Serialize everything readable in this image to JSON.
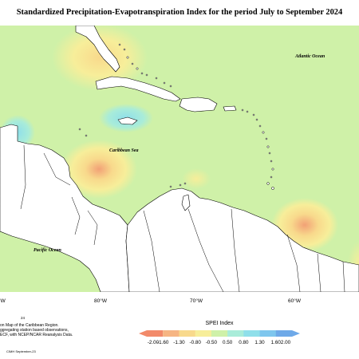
{
  "title": "Standardized Precipitation-Evapotranspiration Index for the period July to September 2024",
  "map_labels": {
    "atlantic": "Atlantic Ocean",
    "caribbean": "Caribbean Sea",
    "pacific": "Pacific Ocean"
  },
  "longitude_ticks": [
    "°W",
    "80°W",
    "70°W",
    "60°W"
  ],
  "figure_number": "24",
  "notes": [
    "on Map of the Caribbean Region.",
    "ggregating station based observations,",
    "ECF, with NCEP/NCAR Reanalysis Data."
  ],
  "credit": "CIMH September-23",
  "legend": {
    "title": "SPEI Index",
    "values": [
      "-2.00",
      "-1.60",
      "-1.30",
      "-0.80",
      "-0.50",
      "0.50",
      "0.80",
      "1.30",
      "1.60",
      "2.00"
    ],
    "colors": [
      "#f28a6a",
      "#f6b583",
      "#f8d98c",
      "#f7ee9a",
      "#cff1a8",
      "#a9ecd9",
      "#8fdfea",
      "#7ec6ee",
      "#6ea9e8"
    ]
  },
  "colors": {
    "ocean_background": "#cff1a8",
    "land": "#ffffff",
    "dry_mild": "#f7ee9a",
    "dry_moderate": "#f8d98c",
    "dry_severe": "#f2a176",
    "wet_mild": "#a9ecd9",
    "wet_moderate": "#8fdfea"
  }
}
